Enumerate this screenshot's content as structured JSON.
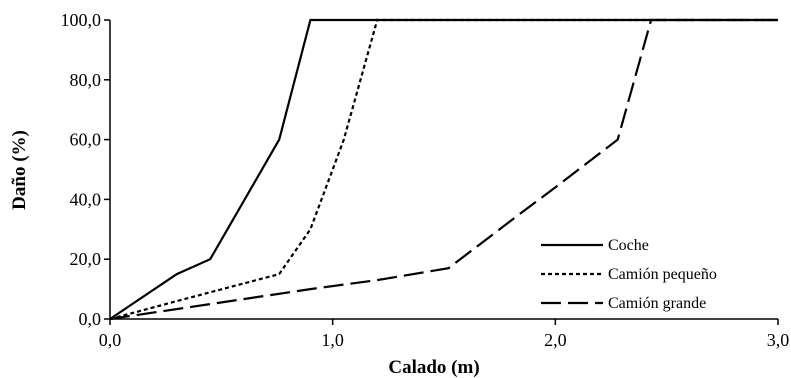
{
  "chart_data": {
    "type": "line",
    "title": "",
    "xlabel": "Calado (m)",
    "ylabel": "Daño (%)",
    "xlim": [
      0,
      3
    ],
    "ylim": [
      0,
      100
    ],
    "x_ticks": [
      "0,0",
      "1,0",
      "2,0",
      "3,0"
    ],
    "y_ticks": [
      "0,0",
      "20,0",
      "40,0",
      "60,0",
      "80,0",
      "100,0"
    ],
    "grid": false,
    "legend_position": "bottom-right",
    "series": [
      {
        "name": "Coche",
        "dash": "solid",
        "x": [
          0,
          0.3,
          0.45,
          0.76,
          0.9,
          3.0
        ],
        "y": [
          0,
          15,
          20,
          60,
          100,
          100
        ]
      },
      {
        "name": "Camión pequeño",
        "dash": "short-dash",
        "x": [
          0,
          0.3,
          0.76,
          0.9,
          1.05,
          1.2,
          3.0
        ],
        "y": [
          0,
          6,
          15,
          30,
          60,
          100,
          100
        ]
      },
      {
        "name": "Camión grande",
        "dash": "long-dash",
        "x": [
          0,
          0.45,
          0.9,
          1.2,
          1.52,
          1.82,
          2.0,
          2.28,
          2.43,
          3.0
        ],
        "y": [
          0,
          5,
          10,
          13,
          17,
          34,
          44,
          60,
          100,
          100
        ]
      }
    ]
  }
}
